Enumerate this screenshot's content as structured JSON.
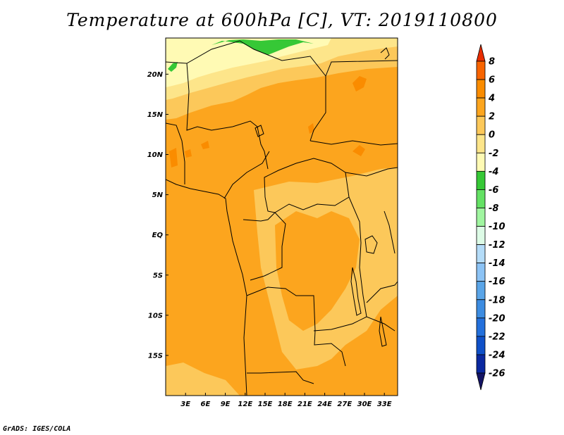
{
  "title": "Temperature at 600hPa [C], VT: 2019110800",
  "credit": "GrADS: IGES/COLA",
  "map": {
    "lon_range": [
      0,
      35
    ],
    "lat_range": [
      -20,
      24.5
    ],
    "lat_ticks": [
      {
        "value": 20,
        "label": "20N"
      },
      {
        "value": 15,
        "label": "15N"
      },
      {
        "value": 10,
        "label": "10N"
      },
      {
        "value": 5,
        "label": "5N"
      },
      {
        "value": 0,
        "label": "EQ"
      },
      {
        "value": -5,
        "label": "5S"
      },
      {
        "value": -10,
        "label": "10S"
      },
      {
        "value": -15,
        "label": "15S"
      }
    ],
    "lon_ticks": [
      {
        "value": 3,
        "label": "3E"
      },
      {
        "value": 6,
        "label": "6E"
      },
      {
        "value": 9,
        "label": "9E"
      },
      {
        "value": 12,
        "label": "12E"
      },
      {
        "value": 15,
        "label": "15E"
      },
      {
        "value": 18,
        "label": "18E"
      },
      {
        "value": 21,
        "label": "21E"
      },
      {
        "value": 24,
        "label": "24E"
      },
      {
        "value": 27,
        "label": "27E"
      },
      {
        "value": 30,
        "label": "30E"
      },
      {
        "value": 33,
        "label": "33E"
      }
    ]
  },
  "colorbar": {
    "labels": [
      "8",
      "6",
      "4",
      "2",
      "0",
      "-2",
      "-4",
      "-6",
      "-8",
      "-10",
      "-12",
      "-14",
      "-16",
      "-18",
      "-20",
      "-22",
      "-24",
      "-26"
    ],
    "colors": [
      "#e82d00",
      "#f86400",
      "#fa8c00",
      "#fca51e",
      "#fcc85a",
      "#fde58a",
      "#fffab4",
      "#36c836",
      "#64e164",
      "#a0f5a0",
      "#ddfbe6",
      "#b4dcf8",
      "#8cc3f5",
      "#5aa5e8",
      "#3c8ce1",
      "#2370dc",
      "#0f50c8",
      "#0a28a0",
      "#141464"
    ]
  }
}
